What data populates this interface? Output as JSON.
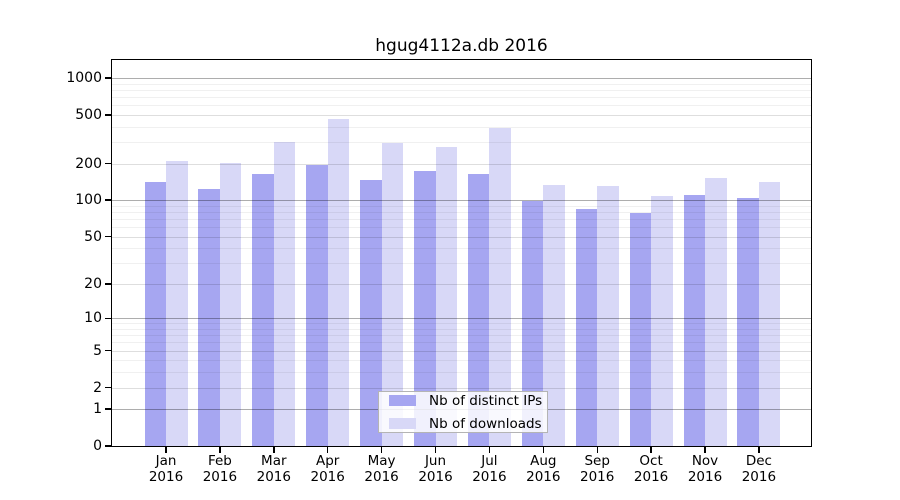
{
  "chart_data": {
    "type": "bar",
    "title": "hgug4112a.db 2016",
    "categories": [
      "Jan",
      "Feb",
      "Mar",
      "Apr",
      "May",
      "Jun",
      "Jul",
      "Aug",
      "Sep",
      "Oct",
      "Nov",
      "Dec"
    ],
    "category_year": "2016",
    "series": [
      {
        "name": "Nb of distinct IPs",
        "color": "#a6a6f1",
        "values": [
          141,
          124,
          164,
          195,
          147,
          174,
          164,
          98,
          84,
          78,
          110,
          105
        ]
      },
      {
        "name": "Nb of downloads",
        "color": "#d8d8f7",
        "values": [
          211,
          201,
          300,
          460,
          293,
          271,
          388,
          133,
          130,
          108,
          152,
          142
        ]
      }
    ],
    "y_ticks": [
      0,
      1,
      2,
      5,
      10,
      20,
      50,
      100,
      200,
      500,
      1000
    ],
    "y_scale": "log10(1+x)",
    "ylim": [
      0,
      1000
    ],
    "grid": "on",
    "legend_position": "bottom-center",
    "axis_color": "#000000",
    "background": "#ffffff"
  }
}
